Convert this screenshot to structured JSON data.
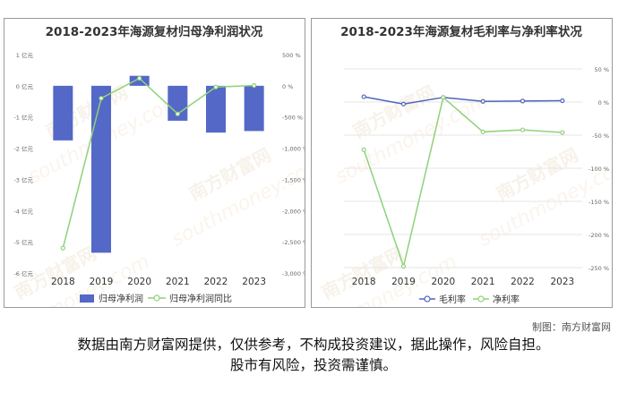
{
  "colors": {
    "bar": "#5468c7",
    "line_green": "#8fd179",
    "line_blue": "#5064b8",
    "axis_text": "#666666",
    "grid": "#e5e5e5"
  },
  "watermark_text": [
    "南方财富网",
    "southmoney.com"
  ],
  "chart_data": [
    {
      "type": "bar",
      "title": "2018-2023年海源复材归母净利润状况",
      "categories": [
        "2018",
        "2019",
        "2020",
        "2021",
        "2022",
        "2023"
      ],
      "series": [
        {
          "name": "归母净利润",
          "type": "bar",
          "axis": "left",
          "values": [
            -1.75,
            -5.35,
            0.32,
            -1.12,
            -1.5,
            -1.45
          ]
        },
        {
          "name": "归母净利润同比",
          "type": "line",
          "axis": "right",
          "values": [
            -2600,
            -200,
            120,
            -450,
            -20,
            5
          ]
        }
      ],
      "y_left": {
        "ticks": [
          "1 亿元",
          "0 亿元",
          "-1 亿元",
          "-2 亿元",
          "-3 亿元",
          "-4 亿元",
          "-5 亿元",
          "-6 亿元"
        ],
        "ylim": [
          -6,
          1
        ]
      },
      "y_right": {
        "ticks": [
          "500 %",
          "0 %",
          "-500 %",
          "-1,000 %",
          "-1,500 %",
          "-2,000 %",
          "-2,500 %",
          "-3,000 %"
        ],
        "ylim": [
          -3000,
          500
        ]
      },
      "grid": false,
      "legend_position": "bottom"
    },
    {
      "type": "line",
      "title": "2018-2023年海源复材毛利率与净利率状况",
      "categories": [
        "2018",
        "2019",
        "2020",
        "2021",
        "2022",
        "2023"
      ],
      "series": [
        {
          "name": "毛利率",
          "values": [
            8,
            -3,
            7,
            1,
            1.5,
            2
          ]
        },
        {
          "name": "净利率",
          "values": [
            -72,
            -248,
            7,
            -45,
            -42,
            -46
          ]
        }
      ],
      "y_right": {
        "ticks": [
          "50 %",
          "0 %",
          "-50 %",
          "-100 %",
          "-150 %",
          "-200 %",
          "-250 %"
        ],
        "ylim": [
          -250,
          50
        ]
      },
      "grid": true,
      "legend_position": "bottom"
    }
  ],
  "credit": "制图：南方财富网",
  "disclaimer": {
    "line1": "数据由南方财富网提供，仅供参考，不构成投资建议，据此操作，风险自担。",
    "line2": "股市有风险，投资需谨慎。"
  }
}
